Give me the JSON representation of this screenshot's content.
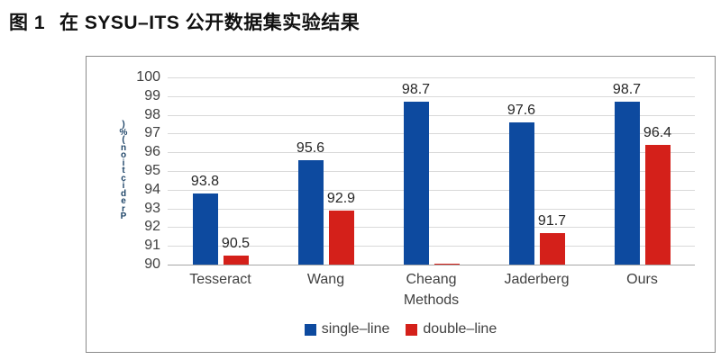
{
  "title": {
    "prefix": "图 1",
    "text": "在 SYSU–ITS 公开数据集实验结果"
  },
  "colors": {
    "single_line": "#0d4a9f",
    "double_line": "#d4201a",
    "gridline": "#d9d9d9",
    "axis_line": "#a6a6a6",
    "chart_border": "#8a8a8a",
    "label_text": "#404040",
    "bar_label_text": "#262626",
    "y_axis_title_text": "#1f4568"
  },
  "chart_data": {
    "type": "bar",
    "title": "在 SYSU–ITS 公开数据集实验结果",
    "categories": [
      "Tesseract",
      "Wang",
      "Cheang",
      "Jaderberg",
      "Ours"
    ],
    "series": [
      {
        "name": "single–line",
        "key": "single-line",
        "color": "#0d4a9f",
        "values": [
          93.8,
          95.6,
          98.7,
          97.6,
          98.7
        ],
        "labels": [
          "93.8",
          "95.6",
          "98.7",
          "97.6",
          "98.7"
        ]
      },
      {
        "name": "double–line",
        "key": "double-line",
        "color": "#d4201a",
        "values": [
          90.5,
          92.9,
          90.05,
          91.7,
          96.4
        ],
        "labels": [
          "90.5",
          "92.9",
          "",
          "91.7",
          "96.4"
        ]
      }
    ],
    "xlabel": "Methods",
    "ylabel": "Prediction(%)",
    "ylabel_stacked": [
      ")",
      "%",
      "(",
      "n",
      "o",
      "i",
      "t",
      "c",
      "i",
      "d",
      "e",
      "r",
      "P"
    ],
    "ylim": [
      90,
      100
    ],
    "yticks": [
      "100",
      "99",
      "98",
      "97",
      "96",
      "95",
      "94",
      "93",
      "92",
      "91",
      "90"
    ],
    "grid": true,
    "legend_position": "bottom-center"
  }
}
